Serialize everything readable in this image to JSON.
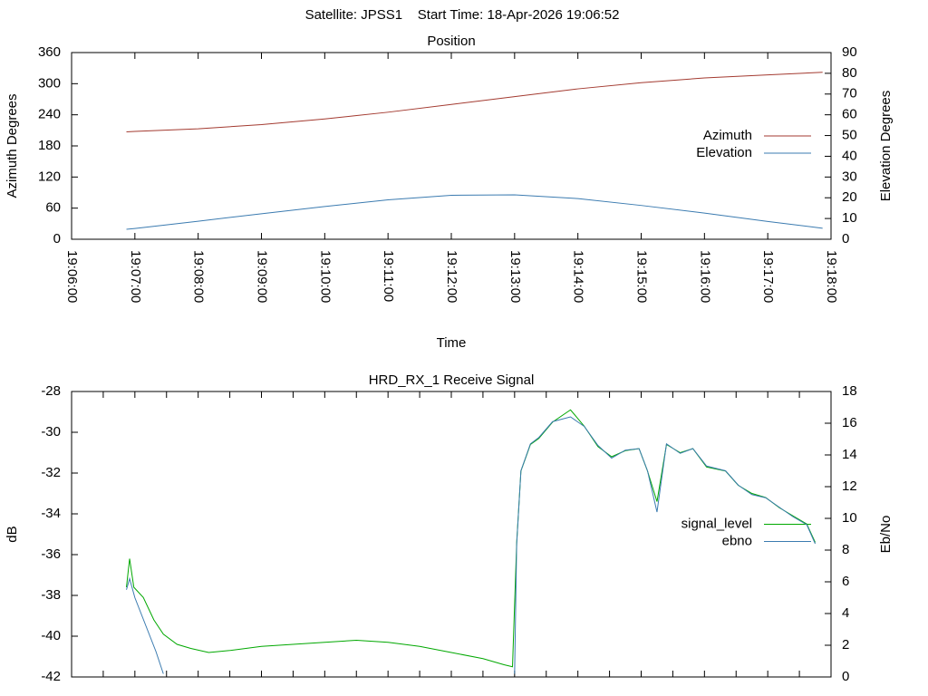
{
  "title": "Satellite: JPSS1    Start Time: 18-Apr-2026 19:06:52",
  "chart_data": [
    {
      "type": "line",
      "title": "Position",
      "x_label": "Time",
      "y_label": "Azimuth Degrees",
      "y2_label": "Elevation Degrees",
      "x": [
        "19:06:52",
        "19:07:00",
        "19:08:00",
        "19:09:00",
        "19:10:00",
        "19:11:00",
        "19:12:00",
        "19:13:00",
        "19:14:00",
        "19:15:00",
        "19:16:00",
        "19:17:00",
        "19:17:52"
      ],
      "xlim": [
        "19:06:00",
        "19:18:00"
      ],
      "xticks": [
        "19:06:00",
        "19:07:00",
        "19:08:00",
        "19:09:00",
        "19:10:00",
        "19:11:00",
        "19:12:00",
        "19:13:00",
        "19:14:00",
        "19:15:00",
        "19:16:00",
        "19:17:00",
        "19:18:00"
      ],
      "ylim": [
        0,
        360
      ],
      "yticks": [
        0,
        60,
        120,
        180,
        240,
        300,
        360
      ],
      "y2lim": [
        0,
        90
      ],
      "y2ticks": [
        0,
        10,
        20,
        30,
        40,
        50,
        60,
        70,
        80,
        90
      ],
      "legend": "right",
      "series": [
        {
          "name": "Azimuth",
          "color": "#a33a30",
          "values": [
            207,
            208,
            213,
            221,
            232,
            245,
            260,
            275,
            290,
            302,
            311,
            317,
            322
          ]
        },
        {
          "name": "Elevation",
          "color": "#3b7bb0",
          "axis": "y2",
          "values": [
            4.8,
            5.2,
            8.7,
            12.3,
            15.8,
            19.0,
            21.2,
            21.4,
            19.6,
            16.3,
            12.6,
            8.6,
            5.3
          ]
        }
      ]
    },
    {
      "type": "line",
      "title": "HRD_RX_1 Receive Signal",
      "y_label": "dB",
      "y2_label": "Eb/No",
      "xlim": [
        "19:06:00",
        "19:18:00"
      ],
      "ylim": [
        -42,
        -28
      ],
      "yticks": [
        -42,
        -40,
        -38,
        -36,
        -34,
        -32,
        -30,
        -28
      ],
      "y2lim": [
        0,
        18
      ],
      "y2ticks": [
        0,
        2,
        4,
        6,
        8,
        10,
        12,
        14,
        16,
        18
      ],
      "legend": "right",
      "series": [
        {
          "name": "signal_level",
          "color": "#00a800",
          "x": [
            "19:06:52",
            "19:06:55",
            "19:06:59",
            "19:07:08",
            "19:07:18",
            "19:07:27",
            "19:07:40",
            "19:07:53",
            "19:08:10",
            "19:08:30",
            "19:09:00",
            "19:09:30",
            "19:10:00",
            "19:10:30",
            "19:11:00",
            "19:11:30",
            "19:12:00",
            "19:12:30",
            "19:12:50",
            "19:12:58",
            "19:13:02",
            "19:13:06",
            "19:13:15",
            "19:13:23",
            "19:13:36",
            "19:13:53",
            "19:14:06",
            "19:14:19",
            "19:14:32",
            "19:14:45",
            "19:14:58",
            "19:15:06",
            "19:15:15",
            "19:15:24",
            "19:15:37",
            "19:15:49",
            "19:16:02",
            "19:16:20",
            "19:16:32",
            "19:16:45",
            "19:16:58",
            "19:17:11",
            "19:17:24",
            "19:17:37",
            "19:17:45"
          ],
          "values": [
            -37.6,
            -36.2,
            -37.6,
            -38.1,
            -39.2,
            -39.9,
            -40.4,
            -40.6,
            -40.8,
            -40.7,
            -40.5,
            -40.4,
            -40.3,
            -40.2,
            -40.3,
            -40.5,
            -40.8,
            -41.1,
            -41.4,
            -41.5,
            -35.4,
            -31.9,
            -30.6,
            -30.3,
            -29.5,
            -28.9,
            -29.7,
            -30.7,
            -31.2,
            -30.9,
            -30.8,
            -31.9,
            -33.4,
            -30.6,
            -31.0,
            -30.8,
            -31.7,
            -31.9,
            -32.6,
            -33.0,
            -33.2,
            -33.7,
            -34.1,
            -34.5,
            -35.4
          ]
        },
        {
          "name": "ebno",
          "color": "#3b7bb0",
          "axis": "y2",
          "x": [
            "19:06:52",
            "19:06:55",
            "19:07:00",
            "19:07:10",
            "19:07:20",
            "19:07:27",
            "19:10:00",
            "19:13:00",
            "19:13:02",
            "19:13:06",
            "19:13:15",
            "19:13:23",
            "19:13:36",
            "19:13:53",
            "19:14:06",
            "19:14:19",
            "19:14:32",
            "19:14:45",
            "19:14:58",
            "19:15:06",
            "19:15:15",
            "19:15:24",
            "19:15:37",
            "19:15:49",
            "19:16:02",
            "19:16:20",
            "19:16:32",
            "19:16:45",
            "19:16:58",
            "19:17:11",
            "19:17:24",
            "19:17:37",
            "19:17:45"
          ],
          "values": [
            5.5,
            6.2,
            5.0,
            3.3,
            1.6,
            0.2,
            null,
            0.2,
            8.4,
            13.0,
            14.7,
            15.1,
            16.1,
            16.4,
            15.8,
            14.6,
            13.8,
            14.3,
            14.4,
            13.0,
            10.4,
            14.7,
            14.1,
            14.4,
            13.3,
            13.0,
            12.1,
            11.5,
            11.3,
            10.7,
            10.1,
            9.6,
            8.4
          ]
        }
      ]
    }
  ]
}
